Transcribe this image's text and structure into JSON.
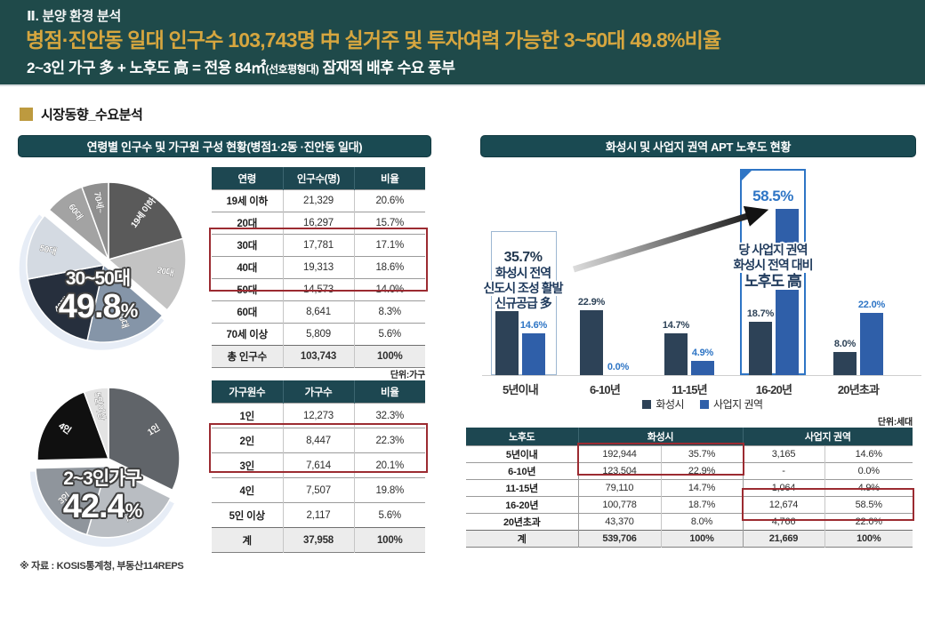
{
  "header": {
    "kicker": "Ⅱ. 분양 환경 분석",
    "headline": "병점·진안동 일대 인구수 103,743명 中 실거주 및 투자여력 가능한 3~50대 49.8%비율",
    "subline": {
      "pre": "2~3인 가구 多 + 노후도 高 = 전용 84㎡",
      "small": "(선호평형대)",
      "post": " 잠재적 배후 수요 풍부"
    }
  },
  "section_label": "시장동향_수요분석",
  "left_panel": {
    "title": "연령별 인구수 및 가구원 구성 현황(병점1·2동 ·진안동 일대)",
    "age_table": {
      "headers": [
        "연령",
        "인구수(명)",
        "비율"
      ],
      "rows": [
        [
          "19세 이하",
          "21,329",
          "20.6%"
        ],
        [
          "20대",
          "16,297",
          "15.7%"
        ],
        [
          "30대",
          "17,781",
          "17.1%"
        ],
        [
          "40대",
          "19,313",
          "18.6%"
        ],
        [
          "50대",
          "14,573",
          "14.0%"
        ],
        [
          "60대",
          "8,641",
          "8.3%"
        ],
        [
          "70세 이상",
          "5,809",
          "5.6%"
        ],
        [
          "총 인구수",
          "103,743",
          "100%"
        ]
      ],
      "highlight_row_indices": [
        2,
        3,
        4
      ]
    },
    "household_table": {
      "unit": "단위:가구",
      "headers": [
        "가구원수",
        "가구수",
        "비율"
      ],
      "rows": [
        [
          "1인",
          "12,273",
          "32.3%"
        ],
        [
          "2인",
          "8,447",
          "22.3%"
        ],
        [
          "3인",
          "7,614",
          "20.1%"
        ],
        [
          "4인",
          "7,507",
          "19.8%"
        ],
        [
          "5인 이상",
          "2,117",
          "5.6%"
        ],
        [
          "계",
          "37,958",
          "100%"
        ]
      ],
      "highlight_row_indices": [
        1,
        2
      ]
    }
  },
  "right_panel": {
    "title": "화성시 및 사업지 권역 APT 노후도 현황",
    "aging_table": {
      "unit": "단위:세대",
      "group_headers": [
        {
          "label": "노후도",
          "span": 1
        },
        {
          "label": "화성시",
          "span": 2
        },
        {
          "label": "사업지 권역",
          "span": 2
        }
      ],
      "rows": [
        [
          "5년이내",
          "192,944",
          "35.7%",
          "3,165",
          "14.6%"
        ],
        [
          "6-10년",
          "123,504",
          "22.9%",
          "-",
          "0.0%"
        ],
        [
          "11-15년",
          "79,110",
          "14.7%",
          "1,064",
          "4.9%"
        ],
        [
          "16-20년",
          "100,778",
          "18.7%",
          "12,674",
          "58.5%"
        ],
        [
          "20년초과",
          "43,370",
          "8.0%",
          "4,766",
          "22.0%"
        ],
        [
          "계",
          "539,706",
          "100%",
          "21,669",
          "100%"
        ]
      ]
    }
  },
  "footer": {
    "source": "※ 자료 : KOSIS통계청, 부동산114REPS"
  },
  "colors": {
    "band_teal": "#1f4a4a",
    "gold": "#d6a63f",
    "panel_teal": "#1a4a52",
    "table_header_teal": "#1d4751",
    "highlight_red": "#9c2b31",
    "navy": "#2d4257",
    "blue": "#2f5fa9",
    "bright_blue": "#2e75c5"
  },
  "chart_data": [
    {
      "type": "pie",
      "name": "연령별 인구 구성",
      "labels": [
        "19세 이하",
        "20대",
        "30대",
        "40대",
        "50대",
        "60대",
        "70세~"
      ],
      "values": [
        20.6,
        15.7,
        17.1,
        18.6,
        14.0,
        8.3,
        5.6
      ],
      "colors": [
        "#5a5a5a",
        "#c3c3c3",
        "#8595a8",
        "#262f3d",
        "#d4dae2",
        "#a3a3a3",
        "#8f8f8f"
      ],
      "exploded_indices": [
        2,
        3,
        4
      ],
      "callout": {
        "label": "30~50대",
        "value": "49.8%"
      }
    },
    {
      "type": "pie",
      "name": "가구원수 구성",
      "labels": [
        "1인",
        "2인",
        "3인",
        "4인",
        "5인이상"
      ],
      "values": [
        32.3,
        22.3,
        20.1,
        19.8,
        5.6
      ],
      "colors": [
        "#606469",
        "#b9bdc2",
        "#8f959c",
        "#101010",
        "#e3e3e3"
      ],
      "exploded_indices": [
        1,
        2
      ],
      "callout": {
        "label": "2~3인가구",
        "value": "42.4%"
      }
    },
    {
      "type": "bar",
      "name": "화성시 및 사업지 권역 APT 노후도",
      "categories": [
        "5년이내",
        "6-10년",
        "11-15년",
        "16-20년",
        "20년초과"
      ],
      "series": [
        {
          "name": "화성시",
          "color": "#2d4257",
          "values": [
            35.7,
            22.9,
            14.7,
            18.7,
            8.0
          ],
          "value_labels": [
            "35.7%",
            "22.9%",
            "14.7%",
            "18.7%",
            "8.0%"
          ]
        },
        {
          "name": "사업지 권역",
          "color": "#2f5fa9",
          "values": [
            14.6,
            0.0,
            4.9,
            58.5,
            22.0
          ],
          "value_labels": [
            "14.6%",
            "0.0%",
            "4.9%",
            "58.5%",
            "22.0%"
          ]
        }
      ],
      "ylim": [
        0,
        62
      ],
      "legend_position": "bottom",
      "annotations": {
        "left_box": {
          "category": "5년이내",
          "value": "35.7%",
          "lines": [
            "화성시 전역",
            "신도시 조성 활발",
            "신규공급 多"
          ]
        },
        "right_box": {
          "category": "16-20년",
          "value": "58.5%",
          "lines": [
            "당 사업지 권역",
            "화성시 전역 대비",
            "노후도 高"
          ]
        }
      }
    }
  ]
}
